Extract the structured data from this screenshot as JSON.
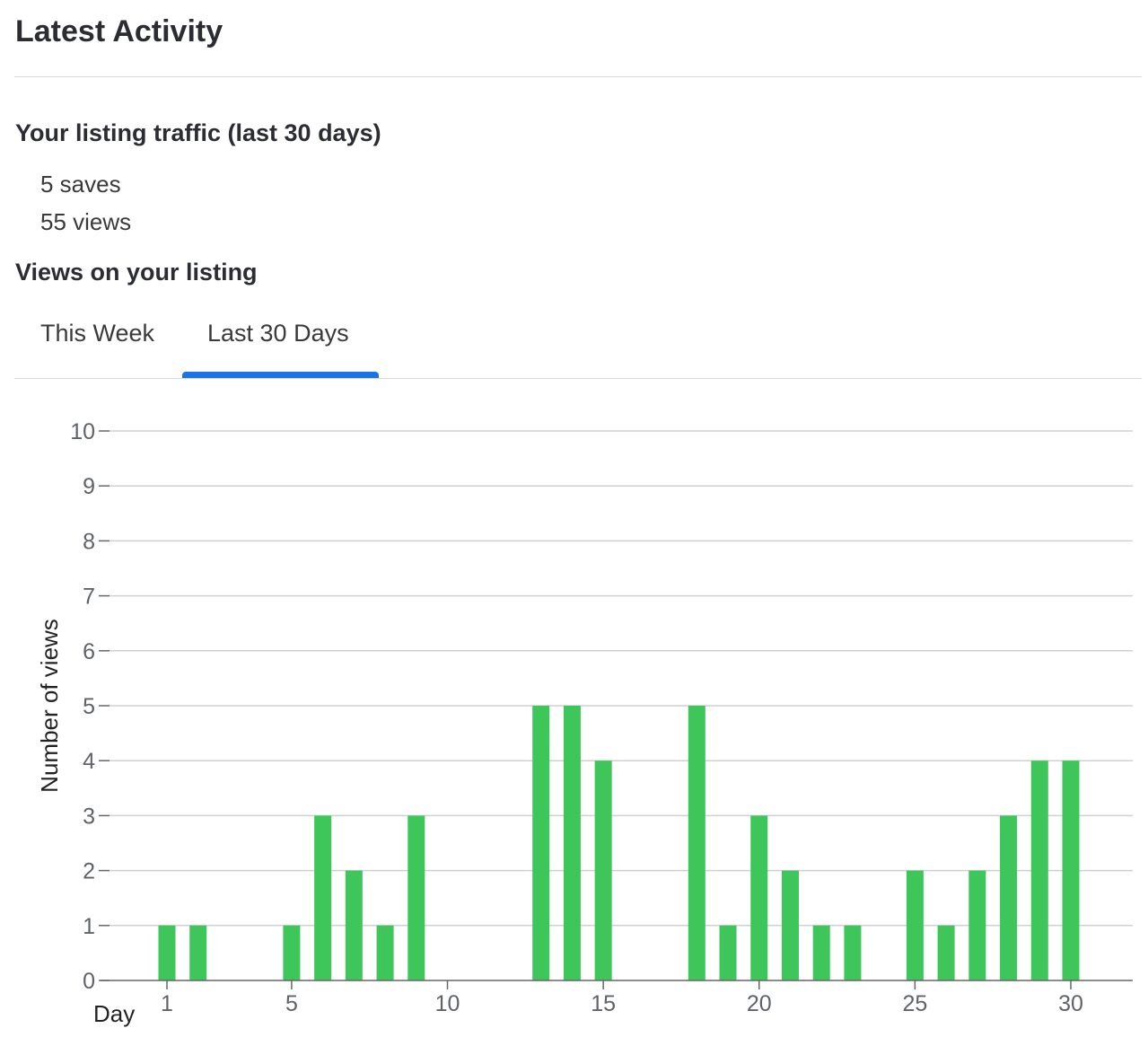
{
  "header": {
    "title": "Latest Activity"
  },
  "traffic": {
    "heading": "Your listing traffic (last 30 days)",
    "saves": "5 saves",
    "views": "55 views"
  },
  "views_section": {
    "heading": "Views on your listing",
    "tabs": [
      {
        "label": "This Week",
        "selected": false
      },
      {
        "label": "Last 30 Days",
        "selected": true
      }
    ]
  },
  "colors": {
    "bar": "#3ec65a",
    "tab_indicator": "#1a73e8",
    "grid": "#d0d0d0"
  },
  "chart_data": {
    "type": "bar",
    "xlabel": "Day",
    "ylabel": "Number of views",
    "x": [
      1,
      2,
      3,
      4,
      5,
      6,
      7,
      8,
      9,
      10,
      11,
      12,
      13,
      14,
      15,
      16,
      17,
      18,
      19,
      20,
      21,
      22,
      23,
      24,
      25,
      26,
      27,
      28,
      29,
      30
    ],
    "values": [
      1,
      1,
      0,
      0,
      1,
      3,
      2,
      1,
      3,
      0,
      0,
      0,
      5,
      5,
      4,
      0,
      0,
      5,
      1,
      3,
      2,
      1,
      1,
      0,
      2,
      1,
      2,
      3,
      4,
      4
    ],
    "xticks": [
      "1",
      "5",
      "10",
      "15",
      "20",
      "25",
      "30"
    ],
    "yticks": [
      "0",
      "1",
      "2",
      "3",
      "4",
      "5",
      "6",
      "7",
      "8",
      "9",
      "10"
    ],
    "ylim": [
      0,
      10
    ],
    "grid": true
  }
}
